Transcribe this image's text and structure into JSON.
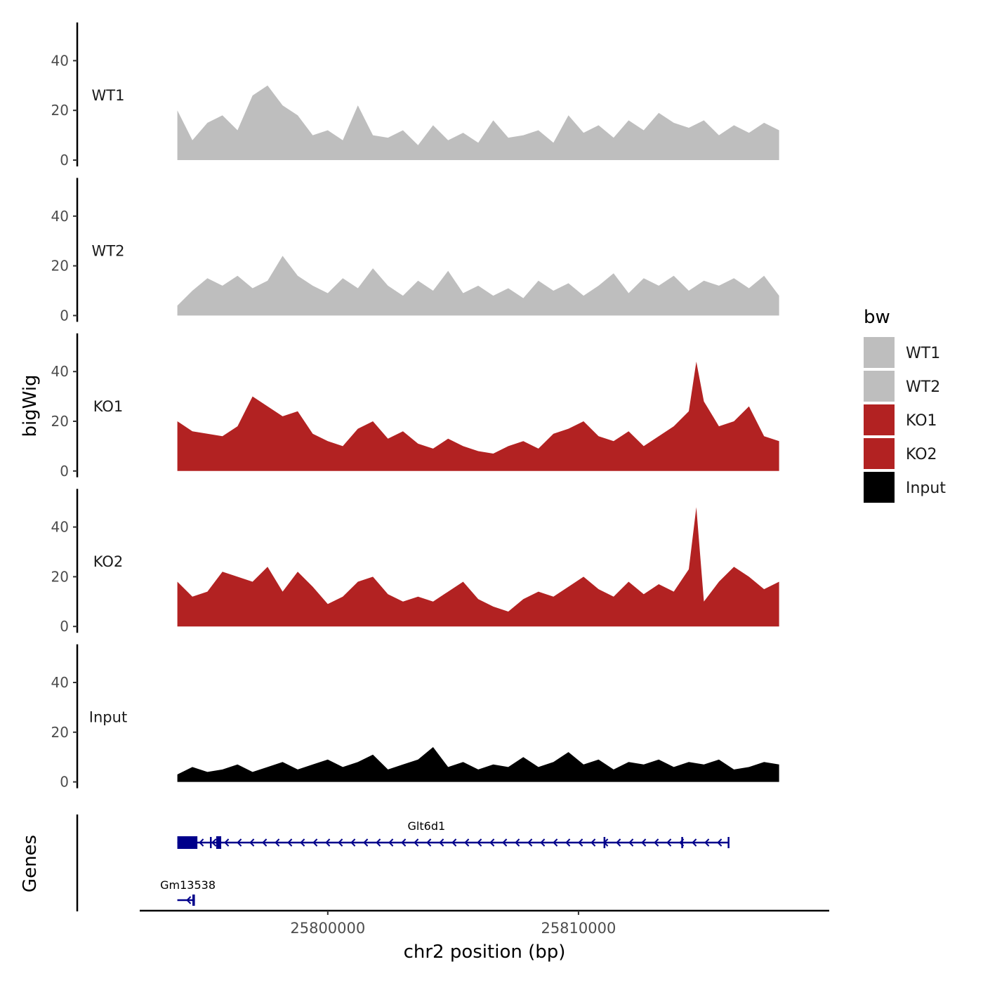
{
  "chart_data": {
    "type": "area",
    "title": "",
    "ylabel": "bigWig",
    "genes_label": "Genes",
    "xlabel": "chr2 position (bp)",
    "xlim": [
      25792500,
      25820000
    ],
    "ylim": [
      0,
      55
    ],
    "y_ticks": [
      "0",
      "20",
      "40"
    ],
    "x_ticks": [
      {
        "value": 25800000,
        "label": "25800000"
      },
      {
        "value": 25810000,
        "label": "25810000"
      }
    ],
    "region": [
      25794000,
      25818000
    ],
    "legend": {
      "title": "bw",
      "position": "right",
      "entries": [
        {
          "label": "WT1",
          "color": "#bebebe"
        },
        {
          "label": "WT2",
          "color": "#bebebe"
        },
        {
          "label": "KO1",
          "color": "#b22222"
        },
        {
          "label": "KO2",
          "color": "#b22222"
        },
        {
          "label": "Input",
          "color": "#000000"
        }
      ]
    },
    "tracks": [
      {
        "name": "WT1",
        "color": "#bebebe",
        "x": [
          25794000,
          25794600,
          25795200,
          25795800,
          25796400,
          25797000,
          25797600,
          25798200,
          25798800,
          25799400,
          25800000,
          25800600,
          25801200,
          25801800,
          25802400,
          25803000,
          25803600,
          25804200,
          25804800,
          25805400,
          25806000,
          25806600,
          25807200,
          25807800,
          25808400,
          25809000,
          25809600,
          25810200,
          25810800,
          25811400,
          25812000,
          25812600,
          25813200,
          25813800,
          25814400,
          25815000,
          25815600,
          25816200,
          25816800,
          25817400,
          25818000
        ],
        "values": [
          20,
          8,
          15,
          18,
          12,
          26,
          30,
          22,
          18,
          10,
          12,
          8,
          22,
          10,
          9,
          12,
          6,
          14,
          8,
          11,
          7,
          16,
          9,
          10,
          12,
          7,
          18,
          11,
          14,
          9,
          16,
          12,
          19,
          15,
          13,
          16,
          10,
          14,
          11,
          15,
          12
        ]
      },
      {
        "name": "WT2",
        "color": "#bebebe",
        "x": [
          25794000,
          25794600,
          25795200,
          25795800,
          25796400,
          25797000,
          25797600,
          25798200,
          25798800,
          25799400,
          25800000,
          25800600,
          25801200,
          25801800,
          25802400,
          25803000,
          25803600,
          25804200,
          25804800,
          25805400,
          25806000,
          25806600,
          25807200,
          25807800,
          25808400,
          25809000,
          25809600,
          25810200,
          25810800,
          25811400,
          25812000,
          25812600,
          25813200,
          25813800,
          25814400,
          25815000,
          25815600,
          25816200,
          25816800,
          25817400,
          25818000
        ],
        "values": [
          4,
          10,
          15,
          12,
          16,
          11,
          14,
          24,
          16,
          12,
          9,
          15,
          11,
          19,
          12,
          8,
          14,
          10,
          18,
          9,
          12,
          8,
          11,
          7,
          14,
          10,
          13,
          8,
          12,
          17,
          9,
          15,
          12,
          16,
          10,
          14,
          12,
          15,
          11,
          16,
          8
        ]
      },
      {
        "name": "KO1",
        "color": "#b22222",
        "x": [
          25794000,
          25794600,
          25795200,
          25795800,
          25796400,
          25797000,
          25797600,
          25798200,
          25798800,
          25799400,
          25800000,
          25800600,
          25801200,
          25801800,
          25802400,
          25803000,
          25803600,
          25804200,
          25804800,
          25805400,
          25806000,
          25806600,
          25807200,
          25807800,
          25808400,
          25809000,
          25809600,
          25810200,
          25810800,
          25811400,
          25812000,
          25812600,
          25813200,
          25813800,
          25814400,
          25814700,
          25815000,
          25815600,
          25816200,
          25816800,
          25817400,
          25818000
        ],
        "values": [
          20,
          16,
          15,
          14,
          18,
          30,
          26,
          22,
          24,
          15,
          12,
          10,
          17,
          20,
          13,
          16,
          11,
          9,
          13,
          10,
          8,
          7,
          10,
          12,
          9,
          15,
          17,
          20,
          14,
          12,
          16,
          10,
          14,
          18,
          24,
          44,
          28,
          18,
          20,
          26,
          14,
          12
        ]
      },
      {
        "name": "KO2",
        "color": "#b22222",
        "x": [
          25794000,
          25794600,
          25795200,
          25795800,
          25796400,
          25797000,
          25797600,
          25798200,
          25798800,
          25799400,
          25800000,
          25800600,
          25801200,
          25801800,
          25802400,
          25803000,
          25803600,
          25804200,
          25804800,
          25805400,
          25806000,
          25806600,
          25807200,
          25807800,
          25808400,
          25809000,
          25809600,
          25810200,
          25810800,
          25811400,
          25812000,
          25812600,
          25813200,
          25813800,
          25814400,
          25814700,
          25815000,
          25815600,
          25816200,
          25816800,
          25817400,
          25818000
        ],
        "values": [
          18,
          12,
          14,
          22,
          20,
          18,
          24,
          14,
          22,
          16,
          9,
          12,
          18,
          20,
          13,
          10,
          12,
          10,
          14,
          18,
          11,
          8,
          6,
          11,
          14,
          12,
          16,
          20,
          15,
          12,
          18,
          13,
          17,
          14,
          23,
          48,
          10,
          18,
          24,
          20,
          15,
          18
        ]
      },
      {
        "name": "Input",
        "color": "#000000",
        "x": [
          25794000,
          25794600,
          25795200,
          25795800,
          25796400,
          25797000,
          25797600,
          25798200,
          25798800,
          25799400,
          25800000,
          25800600,
          25801200,
          25801800,
          25802400,
          25803000,
          25803600,
          25804200,
          25804800,
          25805400,
          25806000,
          25806600,
          25807200,
          25807800,
          25808400,
          25809000,
          25809600,
          25810200,
          25810800,
          25811400,
          25812000,
          25812600,
          25813200,
          25813800,
          25814400,
          25815000,
          25815600,
          25816200,
          25816800,
          25817400,
          25818000
        ],
        "values": [
          3,
          6,
          4,
          5,
          7,
          4,
          6,
          8,
          5,
          7,
          9,
          6,
          8,
          11,
          5,
          7,
          9,
          14,
          6,
          8,
          5,
          7,
          6,
          10,
          6,
          8,
          12,
          7,
          9,
          5,
          8,
          7,
          9,
          6,
          8,
          7,
          9,
          5,
          6,
          8,
          7
        ]
      }
    ],
    "genes": [
      {
        "name": "Glt6d1",
        "start": 25794000,
        "end": 25816000,
        "strand": "-",
        "exons": [
          [
            25794000,
            25794800
          ],
          [
            25795300,
            25795350
          ],
          [
            25795550,
            25795750
          ],
          [
            25811000,
            25811050
          ],
          [
            25814100,
            25814150
          ],
          [
            25815950,
            25816000
          ]
        ]
      },
      {
        "name": "Gm13538",
        "start": 25794000,
        "end": 25794700,
        "strand": "-",
        "exons": [
          [
            25794600,
            25794700
          ]
        ]
      }
    ]
  }
}
